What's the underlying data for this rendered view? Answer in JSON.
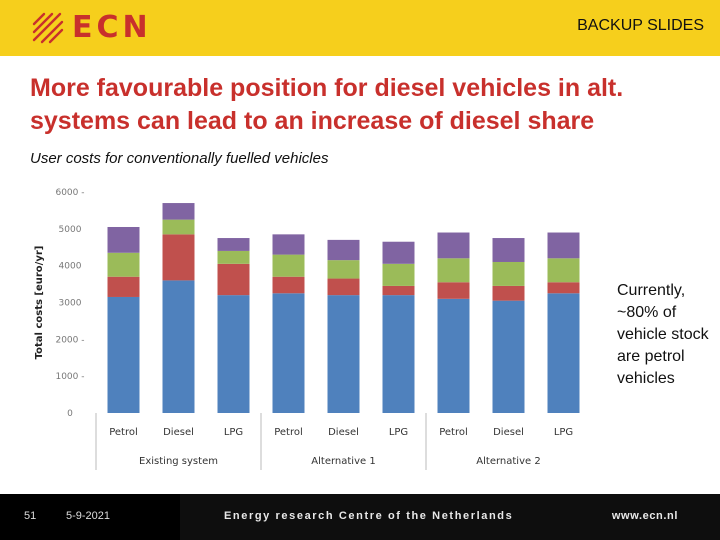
{
  "header": {
    "logo_text": "ECN",
    "section_label": "BACKUP SLIDES"
  },
  "slide": {
    "title": "More favourable position for diesel vehicles in alt. systems can lead to an increase of diesel share",
    "subtitle": "User costs for conventionally fuelled vehicles",
    "note": "Currently, ~80% of vehicle stock are petrol vehicles"
  },
  "footer": {
    "page_number": "51",
    "date": "5-9-2021",
    "organisation": "Energy research Centre of the Netherlands",
    "url": "www.ecn.nl"
  },
  "colors": {
    "brand_yellow": "#f6cf1c",
    "brand_red": "#c8302c",
    "series": [
      "#4f81bd",
      "#c0504d",
      "#9bbb59",
      "#8064a2"
    ]
  },
  "chart_data": {
    "type": "bar",
    "stacked": true,
    "ylabel": "Total costs [euro/yr]",
    "ylim": [
      0,
      6000
    ],
    "yticks": [
      "0",
      "1000 -",
      "2000 -",
      "3000",
      "4000",
      "5000",
      "6000 -"
    ],
    "ytick_values": [
      0,
      1000,
      2000,
      3000,
      4000,
      5000,
      6000
    ],
    "categories": [
      "Petrol",
      "Diesel",
      "LPG",
      "Petrol",
      "Diesel",
      "LPG",
      "Petrol",
      "Diesel",
      "LPG"
    ],
    "groups": [
      {
        "label": "Existing system",
        "size": 3
      },
      {
        "label": "Alternative 1",
        "size": 3
      },
      {
        "label": "Alternative 2",
        "size": 3
      }
    ],
    "series": [
      {
        "values": [
          3150,
          3600,
          3200,
          3250,
          3200,
          3200,
          3100,
          3050,
          3250
        ]
      },
      {
        "values": [
          550,
          1250,
          850,
          450,
          450,
          250,
          450,
          400,
          300
        ]
      },
      {
        "values": [
          650,
          400,
          350,
          600,
          500,
          600,
          650,
          650,
          650
        ]
      },
      {
        "values": [
          700,
          450,
          350,
          550,
          550,
          600,
          700,
          650,
          700
        ]
      }
    ],
    "grid": false,
    "legend": "none"
  }
}
